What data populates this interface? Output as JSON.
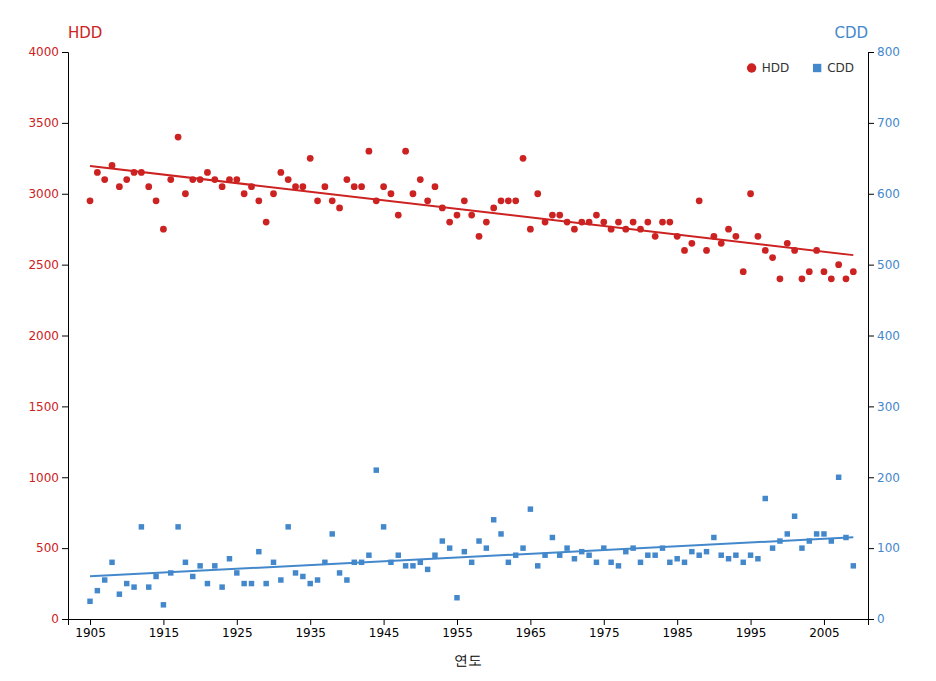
{
  "chart_data": {
    "type": "scatter",
    "xlabel": "연도",
    "ylabel": "HDD",
    "y2label": "CDD",
    "x": [
      1905,
      1906,
      1907,
      1908,
      1909,
      1910,
      1911,
      1912,
      1913,
      1914,
      1915,
      1916,
      1917,
      1918,
      1919,
      1920,
      1921,
      1922,
      1923,
      1924,
      1925,
      1926,
      1927,
      1928,
      1929,
      1930,
      1931,
      1932,
      1933,
      1934,
      1935,
      1936,
      1937,
      1938,
      1939,
      1940,
      1941,
      1942,
      1943,
      1944,
      1945,
      1946,
      1947,
      1948,
      1949,
      1950,
      1951,
      1952,
      1953,
      1954,
      1955,
      1956,
      1957,
      1958,
      1959,
      1960,
      1961,
      1962,
      1963,
      1964,
      1965,
      1966,
      1967,
      1968,
      1969,
      1970,
      1971,
      1972,
      1973,
      1974,
      1975,
      1976,
      1977,
      1978,
      1979,
      1980,
      1981,
      1982,
      1983,
      1984,
      1985,
      1986,
      1987,
      1988,
      1989,
      1990,
      1991,
      1992,
      1993,
      1994,
      1995,
      1996,
      1997,
      1998,
      1999,
      2000,
      2001,
      2002,
      2003,
      2004,
      2005,
      2006,
      2007,
      2008,
      2009
    ],
    "xlim": [
      1902,
      2011
    ],
    "xticks": [
      1905,
      1915,
      1925,
      1935,
      1945,
      1955,
      1965,
      1975,
      1985,
      1995,
      2005
    ],
    "ylim": [
      0,
      4000
    ],
    "yticks": [
      0,
      500,
      1000,
      1500,
      2000,
      2500,
      3000,
      3500,
      4000
    ],
    "y2lim": [
      0,
      800
    ],
    "y2ticks": [
      0,
      100,
      200,
      300,
      400,
      500,
      600,
      700,
      800
    ],
    "grid": false,
    "legend": "upper right",
    "series": [
      {
        "name": "HDD",
        "type": "scatter",
        "marker": "circle",
        "color": "#CC2222",
        "values": [
          2950,
          3150,
          3100,
          3200,
          3050,
          3100,
          3150,
          3150,
          3050,
          2950,
          2750,
          3100,
          3400,
          3000,
          3100,
          3100,
          3150,
          3100,
          3050,
          3100,
          3100,
          3000,
          3050,
          2950,
          2800,
          3000,
          3150,
          3100,
          3050,
          3050,
          3250,
          2950,
          3050,
          2950,
          2900,
          3100,
          3050,
          3050,
          3300,
          2950,
          3050,
          3000,
          2850,
          3300,
          3000,
          3100,
          2950,
          3050,
          2900,
          2800,
          2850,
          2950,
          2850,
          2700,
          2800,
          2900,
          2950,
          2950,
          2950,
          3250,
          2750,
          3000,
          2800,
          2850,
          2850,
          2800,
          2750,
          2800,
          2800,
          2850,
          2800,
          2750,
          2800,
          2750,
          2800,
          2750,
          2800,
          2700,
          2800,
          2800,
          2700,
          2600,
          2650,
          2950,
          2600,
          2700,
          2650,
          2750,
          2700,
          2450,
          3000,
          2700,
          2600,
          2550,
          2400,
          2650,
          2600,
          2400,
          2450,
          2600,
          2450,
          2400,
          2500,
          2400,
          2450
        ]
      },
      {
        "name": "CDD",
        "type": "scatter",
        "marker": "square",
        "color": "#4488CC",
        "axis": "y2",
        "values": [
          25,
          40,
          55,
          80,
          35,
          50,
          45,
          130,
          45,
          60,
          20,
          65,
          130,
          80,
          60,
          75,
          50,
          75,
          45,
          85,
          65,
          50,
          50,
          95,
          50,
          80,
          55,
          130,
          65,
          60,
          50,
          55,
          80,
          120,
          65,
          55,
          80,
          80,
          90,
          210,
          130,
          80,
          90,
          75,
          75,
          80,
          70,
          90,
          110,
          100,
          30,
          95,
          80,
          110,
          100,
          140,
          120,
          80,
          90,
          100,
          155,
          75,
          90,
          115,
          90,
          100,
          85,
          95,
          90,
          80,
          100,
          80,
          75,
          95,
          100,
          80,
          90,
          90,
          100,
          80,
          85,
          80,
          95,
          90,
          95,
          115,
          90,
          85,
          90,
          80,
          90,
          85,
          170,
          100,
          110,
          120,
          145,
          100,
          110,
          120,
          120,
          110,
          200,
          115,
          75
        ]
      },
      {
        "type": "line",
        "line_style": "solid",
        "color": "#CC2222",
        "x": [
          1905,
          2009
        ],
        "values": [
          3195.849,
          2567.008
        ]
      },
      {
        "type": "line",
        "line_style": "solid",
        "color": "#4488CC",
        "axis": "y2",
        "x": [
          1905,
          2009
        ],
        "values": [
          60.211,
          115.408
        ]
      }
    ]
  }
}
